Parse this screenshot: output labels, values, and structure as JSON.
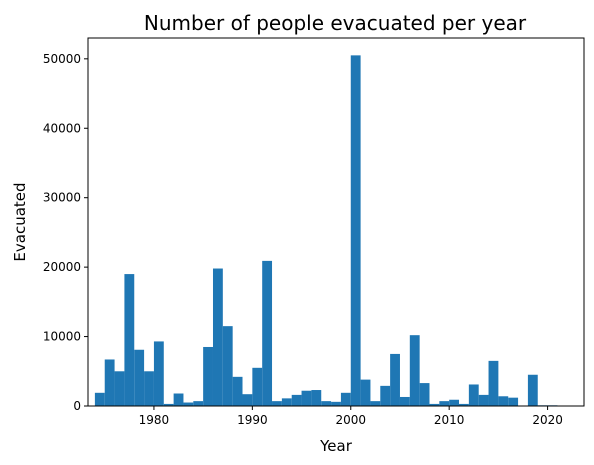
{
  "chart_data": {
    "type": "bar",
    "title": "Number of people evacuated per year",
    "xlabel": "Year",
    "ylabel": "Evacuated",
    "xlim": [
      1973.3,
      2023.7
    ],
    "ylim": [
      0,
      53000
    ],
    "x_ticks": [
      1980,
      1990,
      2000,
      2010,
      2020
    ],
    "y_ticks": [
      0,
      10000,
      20000,
      30000,
      40000,
      50000
    ],
    "grid": false,
    "color": "#1f77b4",
    "bin_width": 1,
    "x": [
      1974.5,
      1975.5,
      1976.5,
      1977.5,
      1978.5,
      1979.5,
      1980.5,
      1981.5,
      1982.5,
      1983.5,
      1984.5,
      1985.5,
      1986.5,
      1987.5,
      1988.5,
      1989.5,
      1990.5,
      1991.5,
      1992.5,
      1993.5,
      1994.5,
      1995.5,
      1996.5,
      1997.5,
      1998.5,
      1999.5,
      2000.5,
      2001.5,
      2002.5,
      2003.5,
      2004.5,
      2005.5,
      2006.5,
      2007.5,
      2008.5,
      2009.5,
      2010.5,
      2011.5,
      2012.5,
      2013.5,
      2014.5,
      2015.5,
      2016.5,
      2017.5,
      2018.5,
      2019.5,
      2020.5,
      2021.5
    ],
    "values": [
      1900,
      6700,
      5000,
      19000,
      8100,
      5000,
      9300,
      300,
      1800,
      500,
      700,
      8500,
      19800,
      11500,
      4200,
      1700,
      5500,
      20900,
      700,
      1100,
      1600,
      2200,
      2300,
      700,
      600,
      1900,
      50500,
      3800,
      700,
      2900,
      7500,
      1300,
      10200,
      3300,
      300,
      700,
      900,
      300,
      3100,
      1600,
      6500,
      1400,
      1200,
      0,
      4500,
      100,
      100,
      0
    ]
  }
}
